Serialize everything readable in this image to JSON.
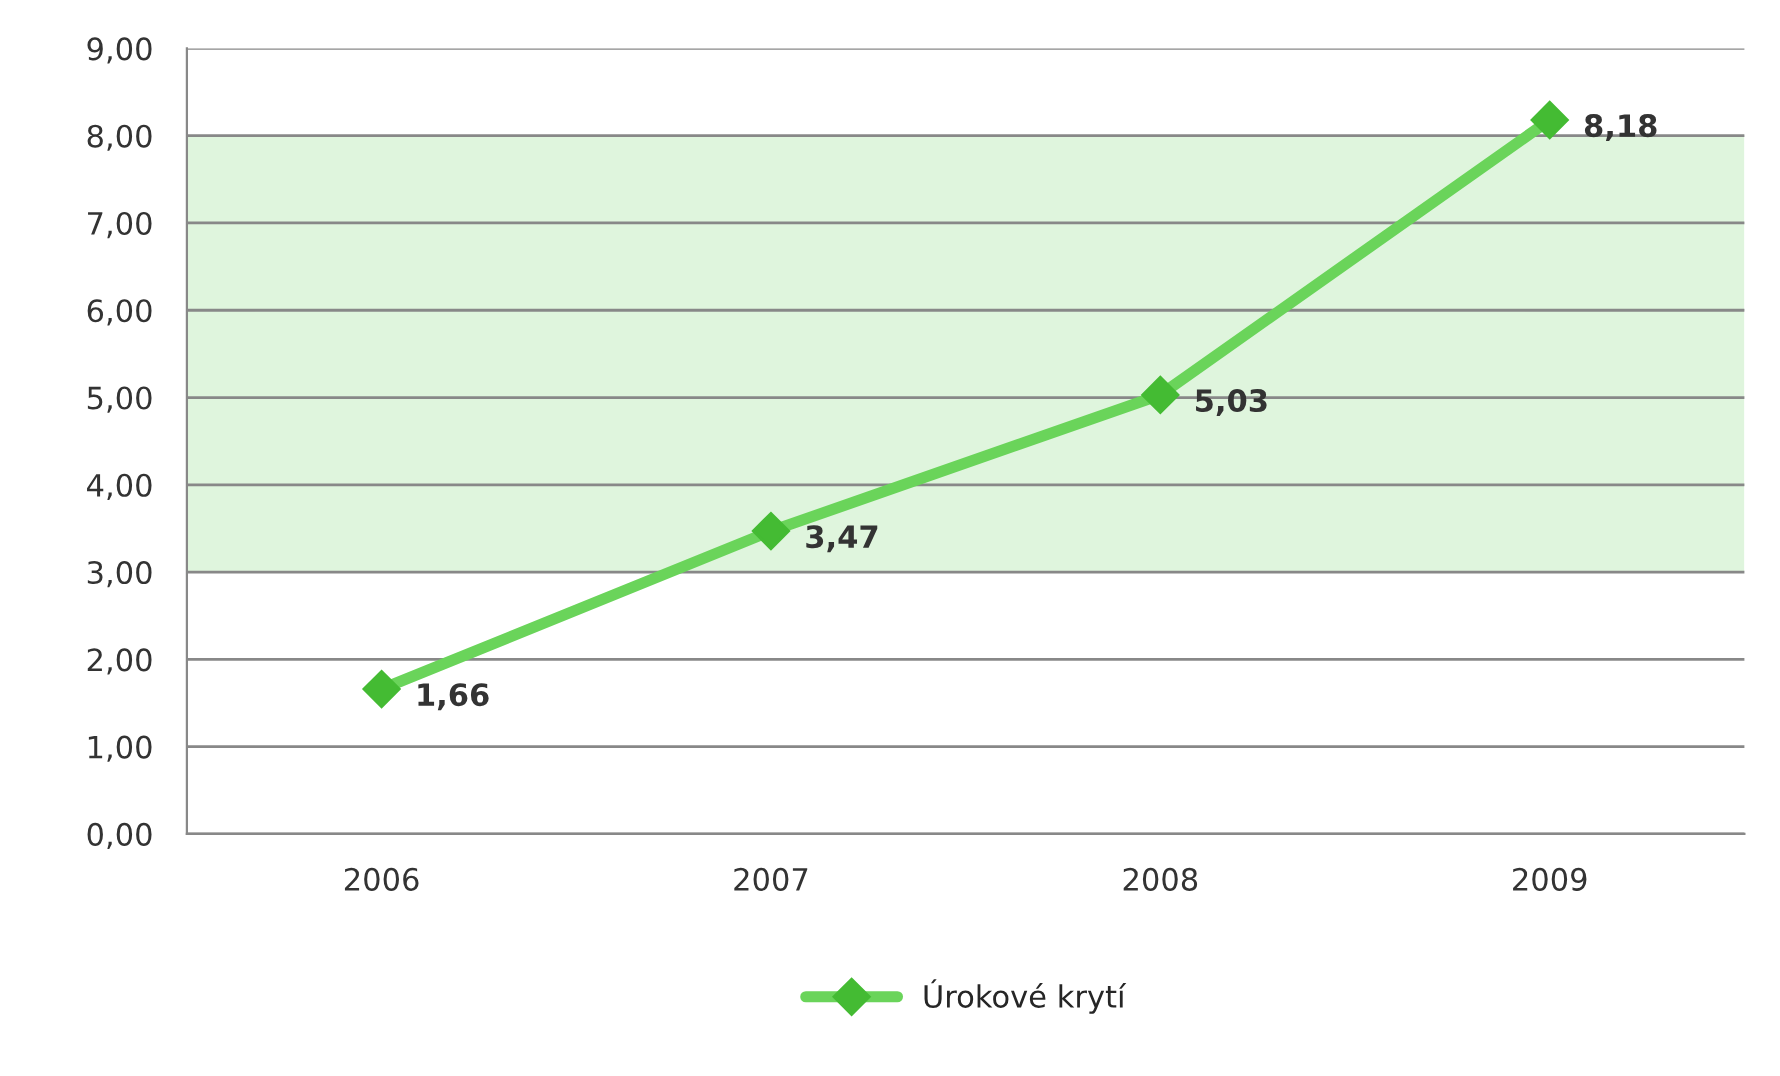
{
  "chart_data": {
    "type": "line",
    "categories": [
      "2006",
      "2007",
      "2008",
      "2009"
    ],
    "series": [
      {
        "name": "Úrokové krytí",
        "color": "#6ad45a",
        "values": [
          1.66,
          3.47,
          5.03,
          8.18
        ],
        "value_labels": [
          "1,66",
          "3,47",
          "5,03",
          "8,18"
        ]
      }
    ],
    "ylim": [
      0,
      9
    ],
    "yticks": [
      {
        "value": 0,
        "label": "0,00"
      },
      {
        "value": 1,
        "label": "1,00"
      },
      {
        "value": 2,
        "label": "2,00"
      },
      {
        "value": 3,
        "label": "3,00"
      },
      {
        "value": 4,
        "label": "4,00"
      },
      {
        "value": 5,
        "label": "5,00"
      },
      {
        "value": 6,
        "label": "6,00"
      },
      {
        "value": 7,
        "label": "7,00"
      },
      {
        "value": 8,
        "label": "8,00"
      },
      {
        "value": 9,
        "label": "9,00"
      }
    ],
    "bands": [
      {
        "axis": "y",
        "from": 3,
        "to": 8,
        "color": "#dff5dd"
      }
    ],
    "grid": "y",
    "legend": "bottom",
    "marker": "diamond",
    "line_style": "solid"
  }
}
